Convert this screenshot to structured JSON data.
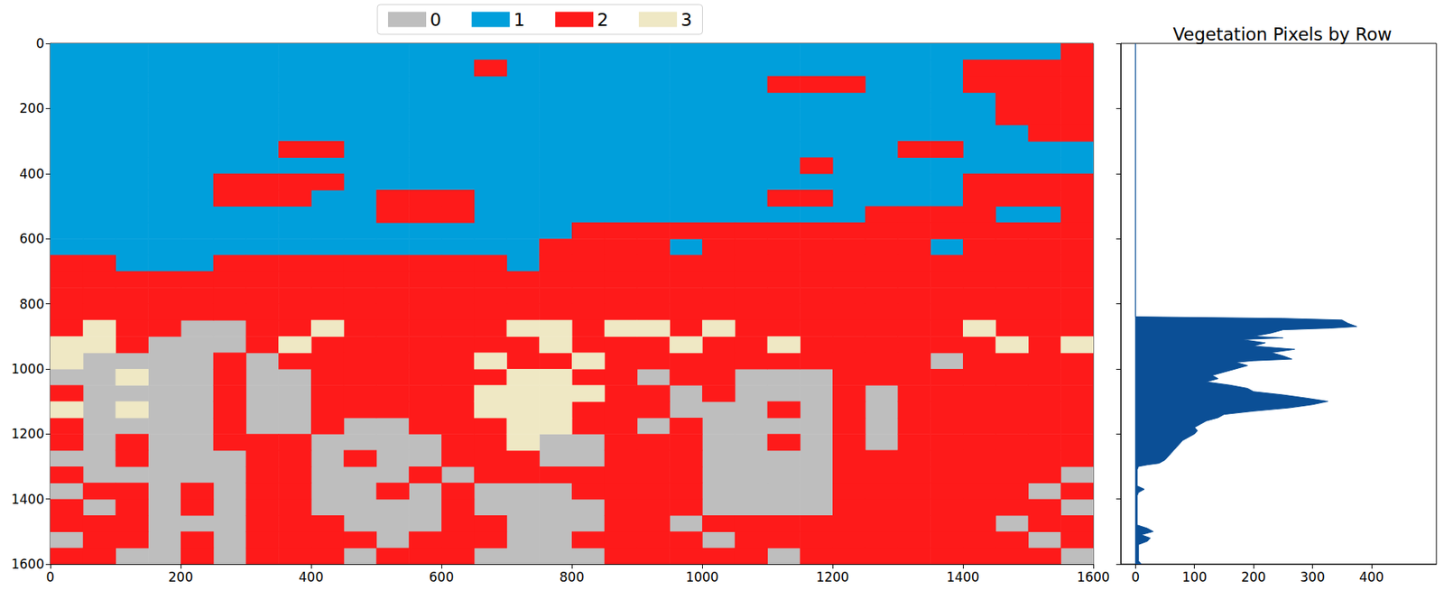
{
  "chart_data": [
    {
      "type": "heatmap",
      "classes": [
        {
          "name": "0",
          "color": "#bebebe"
        },
        {
          "name": "1",
          "color": "#009fdb"
        },
        {
          "name": "2",
          "color": "#fe1a1a"
        },
        {
          "name": "3",
          "color": "#efe8c4"
        }
      ],
      "legend": "top",
      "x_edges": [
        0,
        50,
        100,
        150,
        200,
        250,
        300,
        350,
        400,
        450,
        500,
        550,
        600,
        650,
        700,
        750,
        800,
        850,
        900,
        950,
        1000,
        1050,
        1100,
        1150,
        1200,
        1250,
        1300,
        1350,
        1400,
        1450,
        1500,
        1550,
        1600
      ],
      "y_edges": [
        0,
        50,
        100,
        150,
        200,
        250,
        300,
        350,
        400,
        450,
        500,
        550,
        600,
        650,
        700,
        750,
        800,
        850,
        900,
        950,
        1000,
        1050,
        1100,
        1150,
        1200,
        1250,
        1300,
        1350,
        1400,
        1450,
        1500,
        1550,
        1600
      ],
      "cells": [
        [
          1,
          1,
          1,
          1,
          1,
          1,
          1,
          1,
          1,
          1,
          1,
          1,
          1,
          1,
          1,
          1,
          1,
          1,
          1,
          1,
          1,
          1,
          1,
          1,
          1,
          1,
          1,
          1,
          1,
          1,
          1,
          2
        ],
        [
          1,
          1,
          1,
          1,
          1,
          1,
          1,
          1,
          1,
          1,
          1,
          1,
          1,
          2,
          1,
          1,
          1,
          1,
          1,
          1,
          1,
          1,
          1,
          1,
          1,
          1,
          1,
          1,
          2,
          2,
          2,
          2
        ],
        [
          1,
          1,
          1,
          1,
          1,
          1,
          1,
          1,
          1,
          1,
          1,
          1,
          1,
          1,
          1,
          1,
          1,
          1,
          1,
          1,
          1,
          1,
          2,
          2,
          2,
          1,
          1,
          1,
          2,
          2,
          2,
          2
        ],
        [
          1,
          1,
          1,
          1,
          1,
          1,
          1,
          1,
          1,
          1,
          1,
          1,
          1,
          1,
          1,
          1,
          1,
          1,
          1,
          1,
          1,
          1,
          1,
          1,
          1,
          1,
          1,
          1,
          1,
          2,
          2,
          2
        ],
        [
          1,
          1,
          1,
          1,
          1,
          1,
          1,
          1,
          1,
          1,
          1,
          1,
          1,
          1,
          1,
          1,
          1,
          1,
          1,
          1,
          1,
          1,
          1,
          1,
          1,
          1,
          1,
          1,
          1,
          2,
          2,
          2
        ],
        [
          1,
          1,
          1,
          1,
          1,
          1,
          1,
          1,
          1,
          1,
          1,
          1,
          1,
          1,
          1,
          1,
          1,
          1,
          1,
          1,
          1,
          1,
          1,
          1,
          1,
          1,
          1,
          1,
          1,
          1,
          2,
          2
        ],
        [
          1,
          1,
          1,
          1,
          1,
          1,
          1,
          2,
          2,
          1,
          1,
          1,
          1,
          1,
          1,
          1,
          1,
          1,
          1,
          1,
          1,
          1,
          1,
          1,
          1,
          1,
          2,
          2,
          1,
          1,
          1,
          1
        ],
        [
          1,
          1,
          1,
          1,
          1,
          1,
          1,
          1,
          1,
          1,
          1,
          1,
          1,
          1,
          1,
          1,
          1,
          1,
          1,
          1,
          1,
          1,
          1,
          2,
          1,
          1,
          1,
          1,
          1,
          1,
          1,
          1
        ],
        [
          1,
          1,
          1,
          1,
          1,
          2,
          2,
          2,
          2,
          1,
          1,
          1,
          1,
          1,
          1,
          1,
          1,
          1,
          1,
          1,
          1,
          1,
          1,
          1,
          1,
          1,
          1,
          1,
          2,
          2,
          2,
          2
        ],
        [
          1,
          1,
          1,
          1,
          1,
          2,
          2,
          2,
          1,
          1,
          2,
          2,
          2,
          1,
          1,
          1,
          1,
          1,
          1,
          1,
          1,
          1,
          2,
          2,
          1,
          1,
          1,
          1,
          2,
          2,
          2,
          2
        ],
        [
          1,
          1,
          1,
          1,
          1,
          1,
          1,
          1,
          1,
          1,
          2,
          2,
          2,
          1,
          1,
          1,
          1,
          1,
          1,
          1,
          1,
          1,
          1,
          1,
          1,
          2,
          2,
          2,
          2,
          1,
          1,
          2
        ],
        [
          1,
          1,
          1,
          1,
          1,
          1,
          1,
          1,
          1,
          1,
          1,
          1,
          1,
          1,
          1,
          1,
          2,
          2,
          2,
          2,
          2,
          2,
          2,
          2,
          2,
          2,
          2,
          2,
          2,
          2,
          2,
          2
        ],
        [
          1,
          1,
          1,
          1,
          1,
          1,
          1,
          1,
          1,
          1,
          1,
          1,
          1,
          1,
          1,
          2,
          2,
          2,
          2,
          1,
          2,
          2,
          2,
          2,
          2,
          2,
          2,
          1,
          2,
          2,
          2,
          2
        ],
        [
          2,
          2,
          1,
          1,
          1,
          2,
          2,
          2,
          2,
          2,
          2,
          2,
          2,
          2,
          1,
          2,
          2,
          2,
          2,
          2,
          2,
          2,
          2,
          2,
          2,
          2,
          2,
          2,
          2,
          2,
          2,
          2
        ],
        [
          2,
          2,
          2,
          2,
          2,
          2,
          2,
          2,
          2,
          2,
          2,
          2,
          2,
          2,
          2,
          2,
          2,
          2,
          2,
          2,
          2,
          2,
          2,
          2,
          2,
          2,
          2,
          2,
          2,
          2,
          2,
          2
        ],
        [
          2,
          2,
          2,
          2,
          2,
          2,
          2,
          2,
          2,
          2,
          2,
          2,
          2,
          2,
          2,
          2,
          2,
          2,
          2,
          2,
          2,
          2,
          2,
          2,
          2,
          2,
          2,
          2,
          2,
          2,
          2,
          2
        ],
        [
          2,
          2,
          2,
          2,
          2,
          2,
          2,
          2,
          2,
          2,
          2,
          2,
          2,
          2,
          2,
          2,
          2,
          2,
          2,
          2,
          2,
          2,
          2,
          2,
          2,
          2,
          2,
          2,
          2,
          2,
          2,
          2
        ],
        [
          2,
          3,
          2,
          2,
          0,
          0,
          2,
          2,
          3,
          2,
          2,
          2,
          2,
          2,
          3,
          3,
          2,
          3,
          3,
          2,
          3,
          2,
          2,
          2,
          2,
          2,
          2,
          2,
          3,
          2,
          2,
          2
        ],
        [
          3,
          3,
          2,
          0,
          0,
          0,
          2,
          3,
          2,
          2,
          2,
          2,
          2,
          2,
          2,
          3,
          2,
          2,
          2,
          3,
          2,
          2,
          3,
          2,
          2,
          2,
          2,
          2,
          2,
          3,
          2,
          3
        ],
        [
          3,
          0,
          0,
          0,
          0,
          2,
          0,
          2,
          2,
          2,
          2,
          2,
          2,
          3,
          2,
          2,
          3,
          2,
          2,
          2,
          2,
          2,
          2,
          2,
          2,
          2,
          2,
          0,
          2,
          2,
          2,
          2
        ],
        [
          0,
          0,
          3,
          0,
          0,
          2,
          0,
          0,
          2,
          2,
          2,
          2,
          2,
          2,
          3,
          3,
          2,
          2,
          0,
          2,
          2,
          0,
          0,
          0,
          2,
          2,
          2,
          2,
          2,
          2,
          2,
          2
        ],
        [
          2,
          0,
          0,
          0,
          0,
          2,
          0,
          0,
          2,
          2,
          2,
          2,
          2,
          3,
          3,
          3,
          3,
          2,
          2,
          0,
          2,
          0,
          0,
          0,
          2,
          0,
          2,
          2,
          2,
          2,
          2,
          2
        ],
        [
          3,
          0,
          3,
          0,
          0,
          2,
          0,
          0,
          2,
          2,
          2,
          2,
          2,
          3,
          3,
          3,
          2,
          2,
          2,
          0,
          0,
          0,
          2,
          0,
          2,
          0,
          2,
          2,
          2,
          2,
          2,
          2
        ],
        [
          2,
          0,
          0,
          0,
          0,
          2,
          0,
          0,
          2,
          0,
          0,
          2,
          2,
          2,
          3,
          3,
          2,
          2,
          0,
          2,
          0,
          0,
          0,
          0,
          2,
          0,
          2,
          2,
          2,
          2,
          2,
          2
        ],
        [
          2,
          0,
          2,
          0,
          0,
          2,
          2,
          2,
          0,
          0,
          0,
          0,
          2,
          2,
          3,
          0,
          0,
          2,
          2,
          2,
          0,
          0,
          2,
          0,
          2,
          0,
          2,
          2,
          2,
          2,
          2,
          2
        ],
        [
          0,
          0,
          2,
          0,
          0,
          0,
          2,
          2,
          0,
          2,
          0,
          0,
          2,
          2,
          2,
          0,
          0,
          2,
          2,
          2,
          0,
          0,
          0,
          0,
          2,
          2,
          2,
          2,
          2,
          2,
          2,
          2
        ],
        [
          2,
          0,
          0,
          0,
          0,
          0,
          2,
          2,
          0,
          0,
          0,
          2,
          0,
          2,
          2,
          2,
          2,
          2,
          2,
          2,
          0,
          0,
          0,
          0,
          2,
          2,
          2,
          2,
          2,
          2,
          2,
          0
        ],
        [
          0,
          2,
          2,
          0,
          2,
          0,
          2,
          2,
          0,
          0,
          2,
          0,
          2,
          0,
          0,
          0,
          2,
          2,
          2,
          2,
          0,
          0,
          0,
          0,
          2,
          2,
          2,
          2,
          2,
          2,
          0,
          2
        ],
        [
          2,
          0,
          2,
          0,
          2,
          0,
          2,
          2,
          0,
          0,
          0,
          0,
          2,
          0,
          0,
          0,
          0,
          2,
          2,
          2,
          0,
          0,
          0,
          0,
          2,
          2,
          2,
          2,
          2,
          2,
          2,
          0
        ],
        [
          2,
          2,
          2,
          0,
          0,
          0,
          2,
          2,
          2,
          0,
          0,
          0,
          2,
          2,
          0,
          0,
          0,
          2,
          2,
          0,
          2,
          2,
          2,
          2,
          2,
          2,
          2,
          2,
          2,
          0,
          2,
          2
        ],
        [
          0,
          2,
          2,
          0,
          2,
          0,
          2,
          2,
          2,
          2,
          0,
          2,
          2,
          2,
          0,
          0,
          2,
          2,
          2,
          2,
          0,
          2,
          2,
          2,
          2,
          2,
          2,
          2,
          2,
          2,
          0,
          2
        ],
        [
          2,
          2,
          0,
          0,
          2,
          0,
          2,
          2,
          2,
          0,
          2,
          2,
          2,
          0,
          0,
          0,
          0,
          2,
          2,
          2,
          2,
          2,
          0,
          2,
          2,
          2,
          2,
          2,
          2,
          2,
          2,
          0
        ]
      ],
      "xlim": [
        0,
        1600
      ],
      "xticks": [
        0,
        200,
        400,
        600,
        800,
        1000,
        1200,
        1400,
        1600
      ],
      "ylim": [
        1600,
        0
      ],
      "yticks": [
        0,
        200,
        400,
        600,
        800,
        1000,
        1200,
        1400,
        1600
      ]
    },
    {
      "type": "area",
      "title": "Vegetation Pixels by Row",
      "orientation": "horizontal",
      "color": "#0b4f96",
      "y": [
        0,
        840,
        845,
        850,
        860,
        870,
        875,
        880,
        890,
        900,
        905,
        910,
        920,
        930,
        940,
        950,
        960,
        970,
        975,
        980,
        990,
        1000,
        1010,
        1020,
        1030,
        1040,
        1050,
        1060,
        1070,
        1080,
        1090,
        1100,
        1110,
        1120,
        1130,
        1140,
        1150,
        1160,
        1170,
        1180,
        1190,
        1200,
        1210,
        1220,
        1230,
        1240,
        1250,
        1260,
        1270,
        1280,
        1290,
        1295,
        1300,
        1310,
        1360,
        1370,
        1380,
        1390,
        1480,
        1490,
        1500,
        1510,
        1520,
        1530,
        1540,
        1590,
        1600
      ],
      "values": [
        0,
        0,
        250,
        350,
        360,
        375,
        330,
        250,
        230,
        200,
        250,
        180,
        220,
        200,
        270,
        230,
        250,
        265,
        200,
        170,
        190,
        170,
        150,
        130,
        140,
        120,
        160,
        190,
        200,
        250,
        290,
        326,
        300,
        260,
        200,
        150,
        140,
        120,
        110,
        100,
        105,
        100,
        90,
        80,
        75,
        70,
        65,
        60,
        55,
        50,
        40,
        20,
        5,
        3,
        3,
        15,
        5,
        3,
        3,
        20,
        30,
        10,
        25,
        20,
        5,
        5,
        10
      ],
      "xlim": [
        -25,
        510
      ],
      "xticks": [
        0,
        100,
        200,
        300,
        400
      ],
      "ylim": [
        1600,
        0
      ],
      "yticks": [
        0,
        200,
        400,
        600,
        800,
        1000,
        1200,
        1400,
        1600
      ],
      "tick_labels": "x"
    }
  ]
}
